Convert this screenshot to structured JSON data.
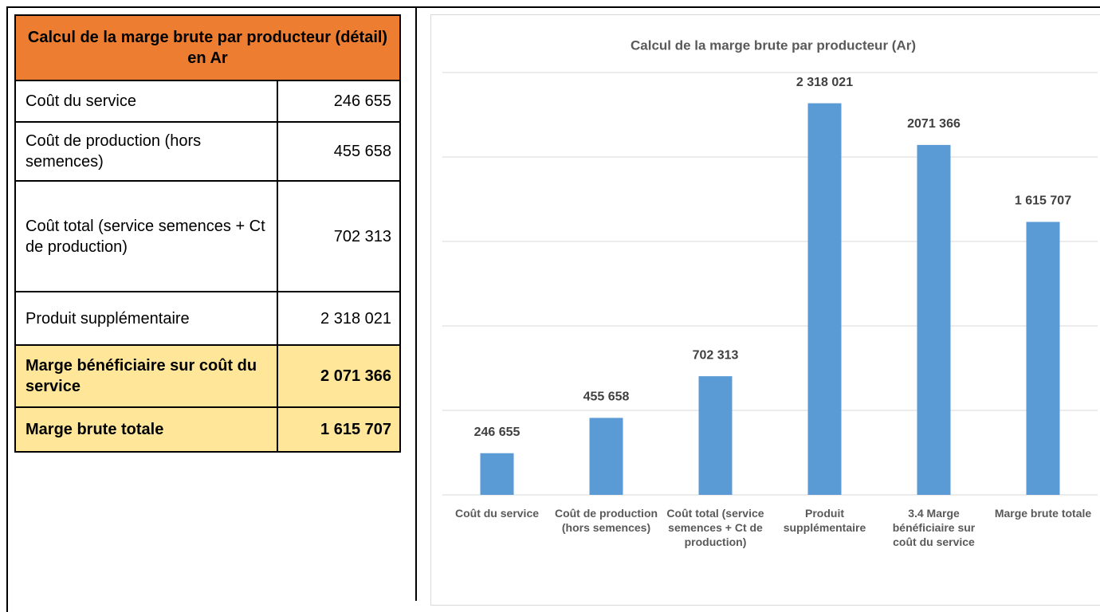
{
  "table": {
    "title": "Calcul de la marge brute par producteur (détail) en Ar",
    "rows": [
      [
        "Coût du service",
        "246 655"
      ],
      [
        "Coût de production (hors semences)",
        "455 658"
      ],
      [
        "Coût total (service semences + Ct de production)",
        "702 313"
      ],
      [
        "Produit supplémentaire",
        "2 318 021"
      ],
      [
        "Marge bénéficiaire sur coût du service",
        "2 071 366"
      ],
      [
        "Marge brute totale",
        "1 615 707"
      ]
    ]
  },
  "chart_data": {
    "type": "bar",
    "title": "Calcul de la marge brute par producteur (Ar)",
    "categories": [
      "Coût du service",
      "Coût de production (hors semences)",
      "Coût total (service semences + Ct de production)",
      "Produit supplémentaire",
      "3.4 Marge bénéficiaire sur coût du service",
      "Marge brute totale"
    ],
    "values": [
      246655,
      455658,
      702313,
      2318021,
      2071366,
      1615707
    ],
    "value_labels": [
      "246 655",
      "455 658",
      "702 313",
      "2 318 021",
      "2071 366",
      "1 615 707"
    ],
    "color": "#5b9bd5",
    "ylim": [
      0,
      2500000
    ],
    "yticks": [
      0,
      500000,
      1000000,
      1500000,
      2000000,
      2500000
    ],
    "grid": true
  }
}
